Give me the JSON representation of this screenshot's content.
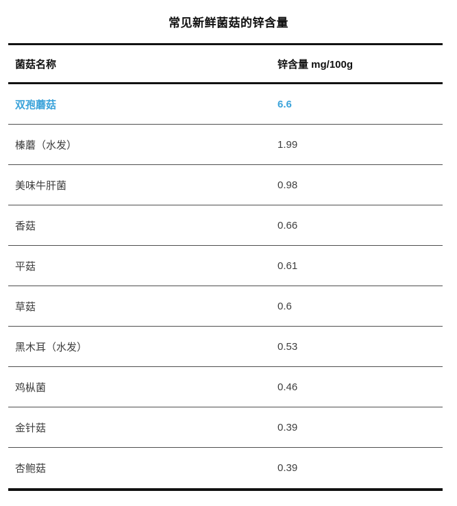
{
  "title": "常见新鲜菌菇的锌含量",
  "table": {
    "columns": {
      "name_label": "菌菇名称",
      "value_label": "锌含量 mg/100g"
    },
    "highlight_color": "#3ba3da",
    "rows": [
      {
        "name": "双孢蘑菇",
        "value": "6.6",
        "highlighted": true
      },
      {
        "name": "榛蘑（水发）",
        "value": "1.99",
        "highlighted": false
      },
      {
        "name": "美味牛肝菌",
        "value": "0.98",
        "highlighted": false
      },
      {
        "name": "香菇",
        "value": "0.66",
        "highlighted": false
      },
      {
        "name": "平菇",
        "value": "0.61",
        "highlighted": false
      },
      {
        "name": "草菇",
        "value": "0.6",
        "highlighted": false
      },
      {
        "name": "黑木耳（水发）",
        "value": "0.53",
        "highlighted": false
      },
      {
        "name": "鸡枞菌",
        "value": "0.46",
        "highlighted": false
      },
      {
        "name": "金针菇",
        "value": "0.39",
        "highlighted": false
      },
      {
        "name": "杏鲍菇",
        "value": "0.39",
        "highlighted": false
      }
    ]
  },
  "chart_data": {
    "type": "table",
    "title": "常见新鲜菌菇的锌含量",
    "columns": [
      "菌菇名称",
      "锌含量 mg/100g"
    ],
    "categories": [
      "双孢蘑菇",
      "榛蘑（水发）",
      "美味牛肝菌",
      "香菇",
      "平菇",
      "草菇",
      "黑木耳（水发）",
      "鸡枞菌",
      "金针菇",
      "杏鲍菇"
    ],
    "values": [
      6.6,
      1.99,
      0.98,
      0.66,
      0.61,
      0.6,
      0.53,
      0.46,
      0.39,
      0.39
    ]
  }
}
